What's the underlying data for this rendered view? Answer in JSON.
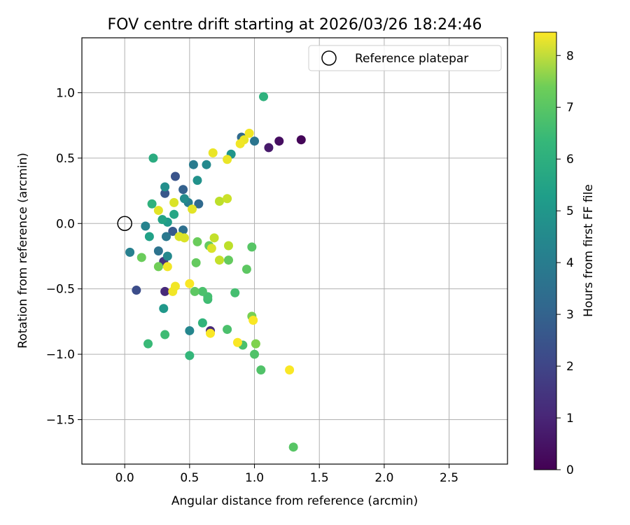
{
  "chart_data": {
    "type": "scatter",
    "title": "FOV centre drift starting at 2026/03/26 18:24:46",
    "xlabel": "Angular distance from reference (arcmin)",
    "ylabel": "Rotation from reference (arcmin)",
    "xlim": [
      -0.33,
      2.95
    ],
    "ylim": [
      -1.84,
      1.42
    ],
    "xticks": [
      0.0,
      0.5,
      1.0,
      1.5,
      2.0,
      2.5
    ],
    "xtick_labels": [
      "0.0",
      "0.5",
      "1.0",
      "1.5",
      "2.0",
      "2.5"
    ],
    "yticks": [
      -1.5,
      -1.0,
      -0.5,
      0.0,
      0.5,
      1.0
    ],
    "ytick_labels": [
      "−1.5",
      "−1.0",
      "−0.5",
      "0.0",
      "0.5",
      "1.0"
    ],
    "grid": true,
    "legend": {
      "position": "upper-right",
      "entries": [
        "Reference platepar"
      ]
    },
    "reference_point": {
      "x": 0.0,
      "y": 0.0,
      "label": "Reference platepar"
    },
    "colorbar": {
      "label": "Hours from first FF file",
      "colormap": "viridis",
      "range": [
        0,
        8.45
      ],
      "ticks": [
        0,
        1,
        2,
        3,
        4,
        5,
        6,
        7,
        8
      ],
      "tick_labels": [
        "0",
        "1",
        "2",
        "3",
        "4",
        "5",
        "6",
        "7",
        "8"
      ]
    },
    "points": [
      {
        "x": 1.36,
        "y": 0.64,
        "c": 0.1
      },
      {
        "x": 1.19,
        "y": 0.63,
        "c": 0.3
      },
      {
        "x": 1.11,
        "y": 0.58,
        "c": 0.6
      },
      {
        "x": 0.31,
        "y": -0.52,
        "c": 1.0
      },
      {
        "x": 0.66,
        "y": -0.82,
        "c": 1.0
      },
      {
        "x": 0.3,
        "y": -0.29,
        "c": 1.3
      },
      {
        "x": 0.09,
        "y": -0.51,
        "c": 2.0
      },
      {
        "x": 0.39,
        "y": 0.36,
        "c": 2.2
      },
      {
        "x": 0.31,
        "y": 0.23,
        "c": 2.3
      },
      {
        "x": 0.37,
        "y": -0.06,
        "c": 2.4
      },
      {
        "x": 0.45,
        "y": 0.26,
        "c": 2.6
      },
      {
        "x": 0.9,
        "y": 0.66,
        "c": 2.9
      },
      {
        "x": 0.57,
        "y": 0.15,
        "c": 2.9
      },
      {
        "x": 0.45,
        "y": -0.05,
        "c": 3.1
      },
      {
        "x": 0.26,
        "y": -0.21,
        "c": 3.2
      },
      {
        "x": 1.0,
        "y": 0.63,
        "c": 3.3
      },
      {
        "x": 0.32,
        "y": -0.1,
        "c": 3.4
      },
      {
        "x": 0.53,
        "y": 0.45,
        "c": 3.5
      },
      {
        "x": 0.49,
        "y": 0.16,
        "c": 3.6
      },
      {
        "x": 0.04,
        "y": -0.22,
        "c": 3.7
      },
      {
        "x": 0.16,
        "y": -0.02,
        "c": 3.8
      },
      {
        "x": 0.5,
        "y": -0.82,
        "c": 3.9
      },
      {
        "x": 0.33,
        "y": -0.25,
        "c": 4.0
      },
      {
        "x": 0.63,
        "y": 0.45,
        "c": 4.0
      },
      {
        "x": 0.46,
        "y": 0.19,
        "c": 4.1
      },
      {
        "x": 0.31,
        "y": 0.28,
        "c": 4.2
      },
      {
        "x": 0.56,
        "y": 0.33,
        "c": 4.3
      },
      {
        "x": 0.82,
        "y": 0.53,
        "c": 4.4
      },
      {
        "x": 0.3,
        "y": -0.65,
        "c": 4.5
      },
      {
        "x": 0.33,
        "y": 0.01,
        "c": 4.6
      },
      {
        "x": 0.19,
        "y": -0.1,
        "c": 4.8
      },
      {
        "x": 0.29,
        "y": 0.03,
        "c": 4.9
      },
      {
        "x": 0.38,
        "y": 0.07,
        "c": 5.0
      },
      {
        "x": 0.22,
        "y": 0.5,
        "c": 5.2
      },
      {
        "x": 1.07,
        "y": 0.97,
        "c": 5.4
      },
      {
        "x": 0.21,
        "y": 0.15,
        "c": 5.4
      },
      {
        "x": 0.6,
        "y": -0.76,
        "c": 5.5
      },
      {
        "x": 0.5,
        "y": -1.01,
        "c": 5.6
      },
      {
        "x": 0.18,
        "y": -0.92,
        "c": 5.7
      },
      {
        "x": 0.31,
        "y": -0.85,
        "c": 5.8
      },
      {
        "x": 0.64,
        "y": -0.58,
        "c": 5.8
      },
      {
        "x": 0.85,
        "y": -0.53,
        "c": 5.9
      },
      {
        "x": 0.64,
        "y": -0.56,
        "c": 5.9
      },
      {
        "x": 0.79,
        "y": -0.81,
        "c": 6.0
      },
      {
        "x": 0.6,
        "y": -0.52,
        "c": 6.0
      },
      {
        "x": 0.91,
        "y": -0.93,
        "c": 6.0
      },
      {
        "x": 1.0,
        "y": -1.0,
        "c": 6.1
      },
      {
        "x": 1.05,
        "y": -1.12,
        "c": 6.1
      },
      {
        "x": 1.3,
        "y": -1.71,
        "c": 6.2
      },
      {
        "x": 0.98,
        "y": -0.18,
        "c": 6.2
      },
      {
        "x": 0.94,
        "y": -0.35,
        "c": 6.3
      },
      {
        "x": 0.54,
        "y": -0.52,
        "c": 6.3
      },
      {
        "x": 0.65,
        "y": -0.17,
        "c": 6.4
      },
      {
        "x": 0.8,
        "y": -0.28,
        "c": 6.4
      },
      {
        "x": 0.55,
        "y": -0.3,
        "c": 6.4
      },
      {
        "x": 0.56,
        "y": -0.14,
        "c": 6.5
      },
      {
        "x": 0.13,
        "y": -0.26,
        "c": 6.5
      },
      {
        "x": 0.26,
        "y": -0.33,
        "c": 6.6
      },
      {
        "x": 0.98,
        "y": -0.71,
        "c": 6.7
      },
      {
        "x": 1.01,
        "y": -0.92,
        "c": 6.8
      },
      {
        "x": 0.73,
        "y": 0.17,
        "c": 7.6
      },
      {
        "x": 0.8,
        "y": -0.17,
        "c": 7.6
      },
      {
        "x": 0.69,
        "y": -0.11,
        "c": 7.7
      },
      {
        "x": 0.73,
        "y": -0.28,
        "c": 7.7
      },
      {
        "x": 0.79,
        "y": 0.19,
        "c": 7.8
      },
      {
        "x": 0.42,
        "y": -0.1,
        "c": 8.0
      },
      {
        "x": 0.46,
        "y": -0.11,
        "c": 8.0
      },
      {
        "x": 0.67,
        "y": -0.19,
        "c": 8.0
      },
      {
        "x": 0.38,
        "y": 0.16,
        "c": 8.0
      },
      {
        "x": 0.52,
        "y": 0.11,
        "c": 8.1
      },
      {
        "x": 0.26,
        "y": 0.1,
        "c": 8.1
      },
      {
        "x": 0.68,
        "y": 0.54,
        "c": 8.2
      },
      {
        "x": 0.79,
        "y": 0.49,
        "c": 8.2
      },
      {
        "x": 0.92,
        "y": 0.64,
        "c": 8.2
      },
      {
        "x": 0.96,
        "y": 0.69,
        "c": 8.3
      },
      {
        "x": 0.89,
        "y": 0.61,
        "c": 8.3
      },
      {
        "x": 0.33,
        "y": -0.33,
        "c": 8.3
      },
      {
        "x": 0.39,
        "y": -0.48,
        "c": 8.3
      },
      {
        "x": 0.37,
        "y": -0.52,
        "c": 8.3
      },
      {
        "x": 0.5,
        "y": -0.46,
        "c": 8.4
      },
      {
        "x": 0.66,
        "y": -0.84,
        "c": 8.4
      },
      {
        "x": 0.87,
        "y": -0.91,
        "c": 8.4
      },
      {
        "x": 0.99,
        "y": -0.74,
        "c": 8.4
      },
      {
        "x": 1.27,
        "y": -1.12,
        "c": 8.4
      }
    ]
  }
}
